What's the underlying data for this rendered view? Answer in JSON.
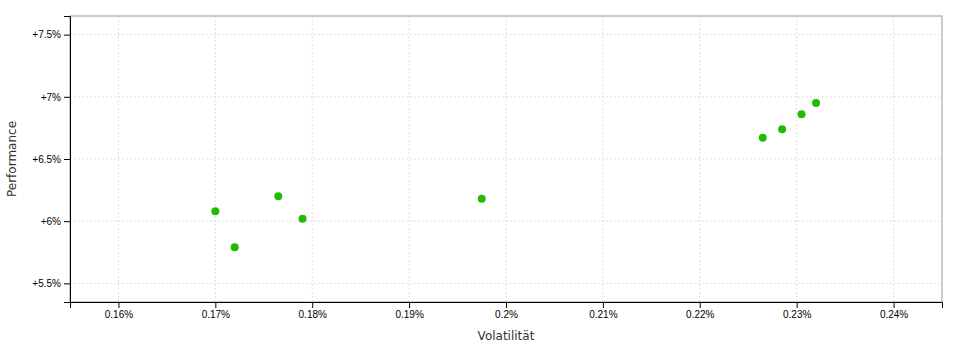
{
  "chart_data": {
    "type": "scatter",
    "xlabel": "Volatilität",
    "ylabel": "Performance",
    "color": "#22bb00",
    "grid": true,
    "xlim": [
      0.155,
      0.245
    ],
    "ylim": [
      5.35,
      7.65
    ],
    "xticks": [
      {
        "value": 0.16,
        "label": "0.16%"
      },
      {
        "value": 0.17,
        "label": "0.17%"
      },
      {
        "value": 0.18,
        "label": "0.18%"
      },
      {
        "value": 0.19,
        "label": "0.19%"
      },
      {
        "value": 0.2,
        "label": "0.2%"
      },
      {
        "value": 0.21,
        "label": "0.21%"
      },
      {
        "value": 0.22,
        "label": "0.22%"
      },
      {
        "value": 0.23,
        "label": "0.23%"
      },
      {
        "value": 0.24,
        "label": "0.24%"
      }
    ],
    "yticks": [
      {
        "value": 5.5,
        "label": "+5.5%"
      },
      {
        "value": 6.0,
        "label": "+6%"
      },
      {
        "value": 6.5,
        "label": "+6.5%"
      },
      {
        "value": 7.0,
        "label": "+7%"
      },
      {
        "value": 7.5,
        "label": "+7.5%"
      }
    ],
    "x": [
      0.17,
      0.172,
      0.1765,
      0.179,
      0.1975,
      0.2265,
      0.2285,
      0.2305,
      0.232
    ],
    "values": [
      6.08,
      5.79,
      6.2,
      6.02,
      6.18,
      6.67,
      6.74,
      6.86,
      6.95
    ]
  }
}
